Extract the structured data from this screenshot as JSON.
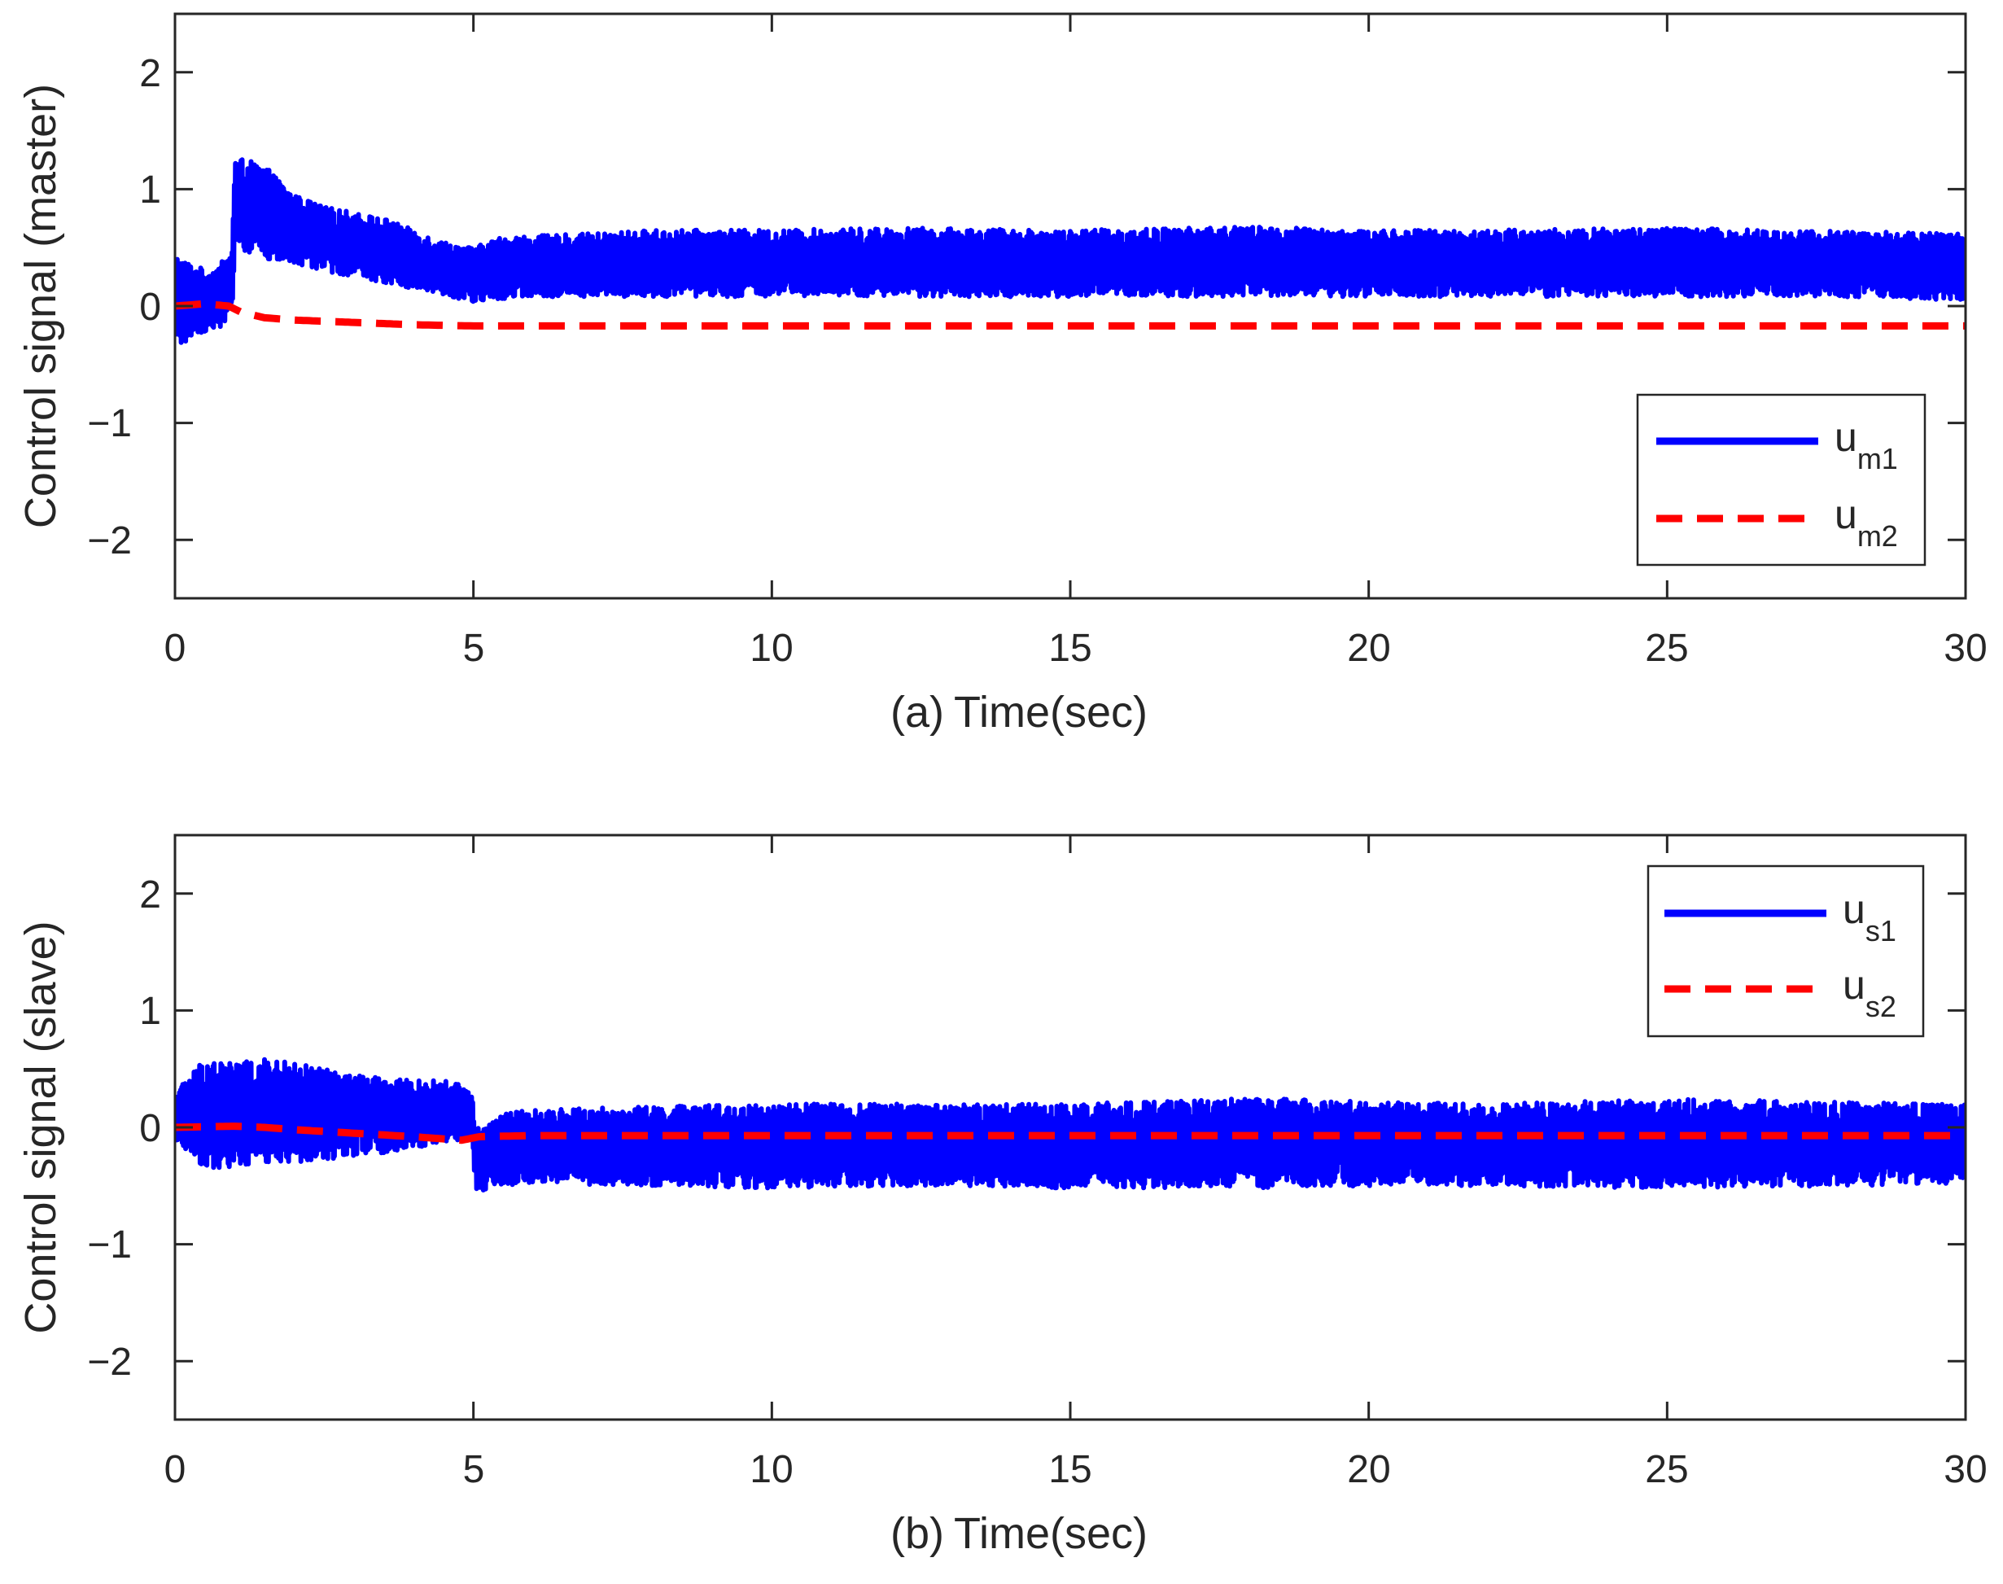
{
  "chart_data": [
    {
      "type": "line",
      "panel_label": "(a)",
      "xlabel": "Time(sec)",
      "ylabel": "Control signal (master)",
      "xlim": [
        0,
        30
      ],
      "ylim": [
        -2.5,
        2.5
      ],
      "xticks": [
        "0",
        "5",
        "10",
        "15",
        "20",
        "25",
        "30"
      ],
      "yticks": [
        "−2",
        "−1",
        "0",
        "1",
        "2"
      ],
      "legend_position": "lower-right",
      "colors": {
        "series1": "#0000ff",
        "series2": "#ff0000",
        "axes": "#262626"
      },
      "series": [
        {
          "name": "u",
          "subscript": "m1",
          "style": "solid",
          "envelope": {
            "x": [
              0,
              0.3,
              0.6,
              0.95,
              1.0,
              1.5,
              2,
              2.5,
              3,
              3.5,
              4,
              4.5,
              5,
              5.5,
              6,
              7,
              8,
              10,
              12,
              15,
              18,
              20,
              22,
              25,
              28,
              30
            ],
            "min": [
              -0.4,
              -0.25,
              -0.2,
              -0.15,
              0.5,
              0.4,
              0.35,
              0.3,
              0.25,
              0.2,
              0.15,
              0.1,
              0.03,
              0.06,
              0.08,
              0.08,
              0.08,
              0.08,
              0.08,
              0.08,
              0.08,
              0.08,
              0.08,
              0.08,
              0.08,
              0.05
            ],
            "max": [
              0.45,
              0.35,
              0.3,
              0.45,
              1.28,
              1.2,
              0.95,
              0.85,
              0.8,
              0.75,
              0.65,
              0.55,
              0.5,
              0.6,
              0.6,
              0.62,
              0.65,
              0.65,
              0.67,
              0.65,
              0.68,
              0.65,
              0.65,
              0.67,
              0.64,
              0.62
            ]
          }
        },
        {
          "name": "u",
          "subscript": "m2",
          "style": "dashed",
          "x": [
            0,
            0.5,
            0.9,
            1.1,
            1.5,
            2,
            3,
            4,
            5,
            6,
            8,
            10,
            15,
            20,
            25,
            30
          ],
          "y": [
            0,
            0.02,
            0.0,
            -0.05,
            -0.1,
            -0.12,
            -0.14,
            -0.16,
            -0.17,
            -0.17,
            -0.17,
            -0.17,
            -0.17,
            -0.17,
            -0.17,
            -0.17
          ]
        }
      ]
    },
    {
      "type": "line",
      "panel_label": "(b)",
      "xlabel": "Time(sec)",
      "ylabel": "Control signal (slave)",
      "xlim": [
        0,
        30
      ],
      "ylim": [
        -2.5,
        2.5
      ],
      "xticks": [
        "0",
        "5",
        "10",
        "15",
        "20",
        "25",
        "30"
      ],
      "yticks": [
        "−2",
        "−1",
        "0",
        "1",
        "2"
      ],
      "legend_position": "top-right",
      "colors": {
        "series1": "#0000ff",
        "series2": "#ff0000",
        "axes": "#262626"
      },
      "series": [
        {
          "name": "u",
          "subscript": "s1",
          "style": "solid",
          "envelope": {
            "x": [
              0,
              0.5,
              1,
              1.5,
              2,
              2.5,
              3,
              3.5,
              4,
              4.5,
              4.95,
              5.05,
              5.5,
              6,
              8,
              10,
              12,
              15,
              18,
              20,
              22,
              25,
              28,
              30
            ],
            "min": [
              -0.1,
              -0.35,
              -0.35,
              -0.3,
              -0.3,
              -0.28,
              -0.25,
              -0.22,
              -0.18,
              -0.12,
              -0.1,
              -0.55,
              -0.5,
              -0.48,
              -0.5,
              -0.52,
              -0.5,
              -0.52,
              -0.52,
              -0.5,
              -0.5,
              -0.52,
              -0.5,
              -0.48
            ],
            "max": [
              0.3,
              0.6,
              0.55,
              0.58,
              0.55,
              0.5,
              0.45,
              0.42,
              0.4,
              0.4,
              0.35,
              0.0,
              0.12,
              0.15,
              0.18,
              0.2,
              0.2,
              0.2,
              0.25,
              0.22,
              0.2,
              0.24,
              0.22,
              0.2
            ]
          }
        },
        {
          "name": "u",
          "subscript": "s2",
          "style": "dashed",
          "x": [
            0,
            1,
            1.5,
            2,
            3,
            4,
            4.8,
            5.1,
            6,
            8,
            10,
            15,
            20,
            25,
            30
          ],
          "y": [
            0,
            0.01,
            0.0,
            -0.02,
            -0.05,
            -0.08,
            -0.11,
            -0.08,
            -0.07,
            -0.07,
            -0.07,
            -0.07,
            -0.07,
            -0.07,
            -0.07
          ]
        }
      ]
    }
  ]
}
